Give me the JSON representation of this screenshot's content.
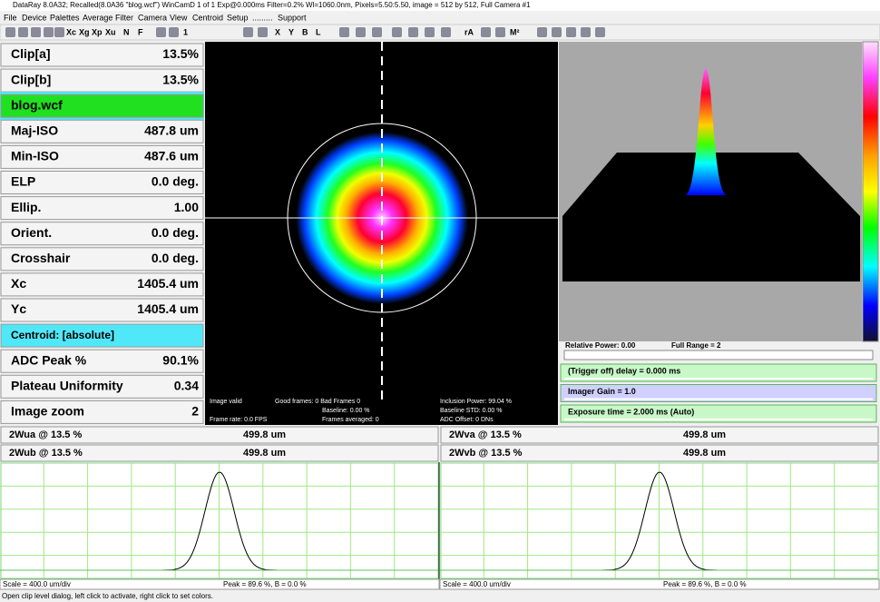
{
  "title_bar": "DataRay 8.0A32; Recalled(8.0A36 \"blog.wcf\")  WinCamD 1 of 1   Exp@0.000ms Filter=0.2%   Wl=1060.0nm, Pixels=5.50:5.50, image = 512 by 512, Full   Camera #1",
  "menu": [
    "File",
    "Device",
    "Palettes",
    "Average",
    "Filter",
    "Camera",
    "View",
    "Centroid",
    "Setup",
    ".........",
    "Support"
  ],
  "toolbar": [
    "Xc",
    "Xg",
    "Xp",
    "Xu",
    "N",
    "F",
    "1",
    "X",
    "Y",
    "B",
    "L",
    "rA",
    "M²"
  ],
  "results": [
    {
      "label": "Clip[a]",
      "value": "13.5%"
    },
    {
      "label": "Clip[b]",
      "value": "13.5%"
    },
    {
      "label": "blog.wcf"
    },
    {
      "label": "Maj-ISO",
      "value": "487.8 um"
    },
    {
      "label": "Min-ISO",
      "value": "487.6 um"
    },
    {
      "label": "ELP",
      "value": "0.0 deg."
    },
    {
      "label": "Ellip.",
      "value": "1.00"
    },
    {
      "label": "Orient.",
      "value": "0.0 deg."
    },
    {
      "label": "Crosshair",
      "value": "0.0 deg."
    },
    {
      "label": "Xc",
      "value": "1405.4 um"
    },
    {
      "label": "Yc",
      "value": "1405.4 um"
    },
    {
      "label": "Centroid: [absolute]"
    },
    {
      "label": "ADC Peak %",
      "value": "90.1%"
    },
    {
      "label": "Plateau Uniformity",
      "value": "0.34"
    },
    {
      "label": "Image zoom",
      "value": "2"
    }
  ],
  "image_overlay": [
    "Image valid",
    "Good frames: 0 Bad Frames 0",
    "Baseline: 0.00 %",
    "Frame rate: 0.0 FPS",
    "Frames averaged: 0",
    "Inclusion Power: 99.04 %",
    "Baseline STD: 0.00 %",
    "ADC Offset: 0 DNs"
  ],
  "power_info": [
    "Relative Power: 0.00",
    "Full Range = 2"
  ],
  "controls": [
    "(Trigger off) delay = 0.000 ms",
    "Imager Gain = 1.0",
    "Exposure time = 2.000 ms (Auto)"
  ],
  "profiles": [
    {
      "label": "2Wua @ 13.5 %",
      "value": "499.8 um"
    },
    {
      "label": "2Wva @ 13.5 %",
      "value": "499.8 um"
    },
    {
      "label": "2Wub @ 13.5 %",
      "value": "499.8 um"
    },
    {
      "label": "2Wvb @ 13.5 %",
      "value": "499.8 um"
    }
  ],
  "plot_footer": [
    {
      "scale": "Scale = 400.0 um/div",
      "peak": "Peak = 89.6 %,  B = 0.0 %"
    },
    {
      "scale": "Scale = 400.0 um/div",
      "peak": "Peak = 89.6 %,  B = 0.0 %"
    }
  ],
  "status": "Open clip level dialog, left click to activate, right click to set colors."
}
